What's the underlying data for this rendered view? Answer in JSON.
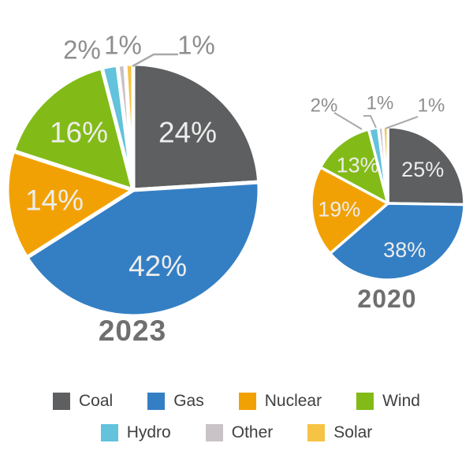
{
  "chart_data": [
    {
      "type": "pie",
      "title": "2023",
      "categories": [
        "Coal",
        "Gas",
        "Nuclear",
        "Wind",
        "Hydro",
        "Other",
        "Solar"
      ],
      "values": [
        24,
        42,
        14,
        16,
        2,
        1,
        1
      ],
      "labels": [
        "24%",
        "42%",
        "14%",
        "16%",
        "2%",
        "1%",
        "1%"
      ],
      "colors": [
        "#5E5F61",
        "#347FC4",
        "#F2A104",
        "#82BB17",
        "#63C2DC",
        "#C9C3C8",
        "#F6C344"
      ],
      "start_angle_deg": 0,
      "direction": "clockwise",
      "label_placement": [
        "inside",
        "inside",
        "inside",
        "inside",
        "outside",
        "outside",
        "outside"
      ]
    },
    {
      "type": "pie",
      "title": "2020",
      "categories": [
        "Coal",
        "Gas",
        "Nuclear",
        "Wind",
        "Hydro",
        "Other",
        "Solar"
      ],
      "values": [
        25,
        38,
        19,
        13,
        2,
        1,
        1
      ],
      "labels": [
        "25%",
        "38%",
        "19%",
        "13%",
        "2%",
        "1%",
        "1%"
      ],
      "colors": [
        "#5E5F61",
        "#347FC4",
        "#F2A104",
        "#82BB17",
        "#63C2DC",
        "#C9C3C8",
        "#F6C344"
      ],
      "start_angle_deg": 0,
      "direction": "clockwise",
      "label_placement": [
        "inside",
        "inside",
        "inside",
        "inside",
        "outside",
        "outside",
        "outside"
      ]
    }
  ],
  "legend": {
    "position": "bottom",
    "rows": [
      [
        0,
        1,
        2,
        3
      ],
      [
        4,
        5,
        6
      ]
    ],
    "items": [
      {
        "label": "Coal",
        "color": "#5E5F61"
      },
      {
        "label": "Gas",
        "color": "#347FC4"
      },
      {
        "label": "Nuclear",
        "color": "#F2A104"
      },
      {
        "label": "Wind",
        "color": "#82BB17"
      },
      {
        "label": "Hydro",
        "color": "#63C2DC"
      },
      {
        "label": "Other",
        "color": "#C9C3C8"
      },
      {
        "label": "Solar",
        "color": "#F6C344"
      }
    ]
  },
  "styles": {
    "background": "#FFFFFF",
    "inside_label_color": "#EDEDEC",
    "outside_label_color": "#8E8E8E",
    "title_color": "#6F6F71",
    "legend_text_color": "#3F3F3F",
    "leader_line_color": "#A9A9A9"
  }
}
